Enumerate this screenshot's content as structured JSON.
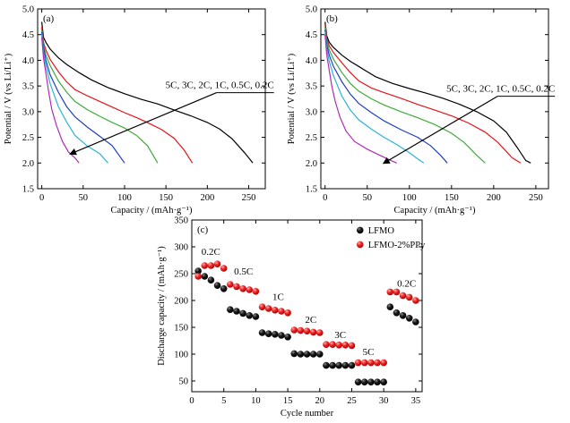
{
  "chart_data": [
    {
      "type": "line",
      "panel_label": "(a)",
      "xlabel": "Capacity / (mAh·g⁻¹)",
      "ylabel": "Potential / V (vs Li/Li⁺)",
      "xlim": [
        -5,
        270
      ],
      "ylim": [
        1.5,
        5.0
      ],
      "xticks": [
        0,
        50,
        100,
        150,
        200,
        250
      ],
      "yticks": [
        1.5,
        2.0,
        2.5,
        3.0,
        3.5,
        4.0,
        4.5,
        5.0
      ],
      "grid": false,
      "annotation": "5C, 3C, 2C, 1C, 0.5C, 0.2C",
      "arrow": {
        "from": [
          235,
          3.37
        ],
        "to": [
          35,
          2.18
        ]
      },
      "series": [
        {
          "color": "#000000",
          "points": [
            [
              0,
              4.75
            ],
            [
              2,
              4.45
            ],
            [
              5,
              4.35
            ],
            [
              10,
              4.22
            ],
            [
              20,
              4.05
            ],
            [
              30,
              3.92
            ],
            [
              45,
              3.76
            ],
            [
              60,
              3.62
            ],
            [
              80,
              3.47
            ],
            [
              100,
              3.35
            ],
            [
              120,
              3.24
            ],
            [
              140,
              3.15
            ],
            [
              160,
              3.03
            ],
            [
              180,
              2.92
            ],
            [
              200,
              2.79
            ],
            [
              215,
              2.66
            ],
            [
              230,
              2.47
            ],
            [
              245,
              2.2
            ],
            [
              255,
              2.0
            ]
          ]
        },
        {
          "color": "#e8141b",
          "points": [
            [
              0,
              4.65
            ],
            [
              2,
              4.35
            ],
            [
              5,
              4.2
            ],
            [
              10,
              4.02
            ],
            [
              20,
              3.78
            ],
            [
              30,
              3.58
            ],
            [
              40,
              3.43
            ],
            [
              55,
              3.31
            ],
            [
              70,
              3.2
            ],
            [
              85,
              3.09
            ],
            [
              100,
              2.98
            ],
            [
              115,
              2.88
            ],
            [
              130,
              2.77
            ],
            [
              145,
              2.65
            ],
            [
              160,
              2.48
            ],
            [
              172,
              2.25
            ],
            [
              182,
              2.0
            ]
          ]
        },
        {
          "color": "#3fab3a",
          "points": [
            [
              0,
              4.6
            ],
            [
              2,
              4.3
            ],
            [
              5,
              4.1
            ],
            [
              10,
              3.9
            ],
            [
              20,
              3.6
            ],
            [
              30,
              3.38
            ],
            [
              40,
              3.2
            ],
            [
              55,
              3.04
            ],
            [
              70,
              2.91
            ],
            [
              85,
              2.79
            ],
            [
              100,
              2.68
            ],
            [
              115,
              2.53
            ],
            [
              128,
              2.33
            ],
            [
              140,
              2.0
            ]
          ]
        },
        {
          "color": "#1f3ec4",
          "points": [
            [
              0,
              4.55
            ],
            [
              2,
              4.25
            ],
            [
              5,
              4.0
            ],
            [
              10,
              3.72
            ],
            [
              20,
              3.38
            ],
            [
              30,
              3.1
            ],
            [
              40,
              2.9
            ],
            [
              55,
              2.7
            ],
            [
              70,
              2.52
            ],
            [
              85,
              2.34
            ],
            [
              100,
              2.0
            ]
          ]
        },
        {
          "color": "#29b6d6",
          "points": [
            [
              0,
              4.5
            ],
            [
              2,
              4.15
            ],
            [
              5,
              3.9
            ],
            [
              10,
              3.55
            ],
            [
              20,
              3.1
            ],
            [
              30,
              2.8
            ],
            [
              40,
              2.54
            ],
            [
              55,
              2.33
            ],
            [
              70,
              2.18
            ],
            [
              80,
              2.0
            ]
          ]
        },
        {
          "color": "#b12bb8",
          "points": [
            [
              0,
              4.45
            ],
            [
              2,
              4.05
            ],
            [
              5,
              3.75
            ],
            [
              8,
              3.42
            ],
            [
              12,
              3.05
            ],
            [
              18,
              2.72
            ],
            [
              25,
              2.42
            ],
            [
              32,
              2.22
            ],
            [
              40,
              2.1
            ],
            [
              45,
              2.0
            ]
          ]
        }
      ]
    },
    {
      "type": "line",
      "panel_label": "(b)",
      "xlabel": "Capacity / (mAh·g⁻¹)",
      "ylabel": "Potential / V (vs Li/Li⁺)",
      "xlim": [
        -5,
        265
      ],
      "ylim": [
        1.5,
        5.0
      ],
      "xticks": [
        0,
        50,
        100,
        150,
        200,
        250
      ],
      "yticks": [
        1.5,
        2.0,
        2.5,
        3.0,
        3.5,
        4.0,
        4.5,
        5.0
      ],
      "grid": false,
      "annotation": "5C, 3C, 2C, 1C, 0.5C, 0.2C",
      "arrow": {
        "from": [
          228,
          3.3
        ],
        "to": [
          70,
          2.0
        ]
      },
      "series": [
        {
          "color": "#000000",
          "points": [
            [
              0,
              4.75
            ],
            [
              2,
              4.48
            ],
            [
              5,
              4.35
            ],
            [
              10,
              4.25
            ],
            [
              20,
              4.1
            ],
            [
              30,
              3.98
            ],
            [
              40,
              3.88
            ],
            [
              50,
              3.78
            ],
            [
              60,
              3.68
            ],
            [
              80,
              3.55
            ],
            [
              100,
              3.45
            ],
            [
              120,
              3.36
            ],
            [
              140,
              3.26
            ],
            [
              160,
              3.14
            ],
            [
              180,
              3.0
            ],
            [
              200,
              2.82
            ],
            [
              215,
              2.6
            ],
            [
              228,
              2.3
            ],
            [
              238,
              2.05
            ],
            [
              244,
              2.0
            ]
          ]
        },
        {
          "color": "#e8141b",
          "points": [
            [
              0,
              4.7
            ],
            [
              2,
              4.42
            ],
            [
              5,
              4.28
            ],
            [
              10,
              4.15
            ],
            [
              20,
              3.95
            ],
            [
              30,
              3.76
            ],
            [
              40,
              3.6
            ],
            [
              55,
              3.46
            ],
            [
              70,
              3.37
            ],
            [
              90,
              3.26
            ],
            [
              110,
              3.14
            ],
            [
              130,
              3.03
            ],
            [
              150,
              2.92
            ],
            [
              170,
              2.78
            ],
            [
              190,
              2.6
            ],
            [
              205,
              2.4
            ],
            [
              222,
              2.1
            ],
            [
              232,
              2.0
            ]
          ]
        },
        {
          "color": "#3fab3a",
          "points": [
            [
              0,
              4.65
            ],
            [
              2,
              4.38
            ],
            [
              5,
              4.2
            ],
            [
              10,
              4.02
            ],
            [
              20,
              3.76
            ],
            [
              30,
              3.55
            ],
            [
              40,
              3.4
            ],
            [
              55,
              3.25
            ],
            [
              70,
              3.13
            ],
            [
              90,
              3.0
            ],
            [
              110,
              2.88
            ],
            [
              130,
              2.75
            ],
            [
              150,
              2.58
            ],
            [
              165,
              2.4
            ],
            [
              180,
              2.15
            ],
            [
              190,
              2.0
            ]
          ]
        },
        {
          "color": "#1f3ec4",
          "points": [
            [
              0,
              4.6
            ],
            [
              2,
              4.3
            ],
            [
              5,
              4.1
            ],
            [
              10,
              3.88
            ],
            [
              20,
              3.58
            ],
            [
              30,
              3.34
            ],
            [
              40,
              3.16
            ],
            [
              55,
              2.98
            ],
            [
              70,
              2.82
            ],
            [
              90,
              2.65
            ],
            [
              110,
              2.5
            ],
            [
              125,
              2.34
            ],
            [
              137,
              2.15
            ],
            [
              145,
              2.0
            ]
          ]
        },
        {
          "color": "#29b6d6",
          "points": [
            [
              0,
              4.55
            ],
            [
              2,
              4.22
            ],
            [
              5,
              3.98
            ],
            [
              10,
              3.7
            ],
            [
              20,
              3.3
            ],
            [
              30,
              3.03
            ],
            [
              40,
              2.84
            ],
            [
              55,
              2.66
            ],
            [
              70,
              2.5
            ],
            [
              85,
              2.36
            ],
            [
              100,
              2.2
            ],
            [
              110,
              2.08
            ],
            [
              117,
              2.0
            ]
          ]
        },
        {
          "color": "#b12bb8",
          "points": [
            [
              0,
              4.5
            ],
            [
              2,
              4.1
            ],
            [
              5,
              3.8
            ],
            [
              8,
              3.5
            ],
            [
              12,
              3.2
            ],
            [
              18,
              2.88
            ],
            [
              25,
              2.62
            ],
            [
              35,
              2.42
            ],
            [
              50,
              2.27
            ],
            [
              65,
              2.15
            ],
            [
              78,
              2.05
            ],
            [
              85,
              2.0
            ]
          ]
        }
      ]
    },
    {
      "type": "scatter",
      "panel_label": "(c)",
      "xlabel": "Cycle number",
      "ylabel": "Discharge capacity / (mAh·g⁻¹)",
      "xlim": [
        0,
        36
      ],
      "ylim": [
        30,
        350
      ],
      "xticks": [
        0,
        5,
        10,
        15,
        20,
        25,
        30,
        35
      ],
      "yticks": [
        50,
        100,
        150,
        200,
        250,
        300,
        350
      ],
      "grid": false,
      "legend_position": "top-right",
      "rate_labels": [
        {
          "text": "0.2C",
          "x": 1.5,
          "y": 285
        },
        {
          "text": "0.5C",
          "x": 6.6,
          "y": 248
        },
        {
          "text": "1C",
          "x": 12.6,
          "y": 201
        },
        {
          "text": "2C",
          "x": 17.7,
          "y": 158
        },
        {
          "text": "3C",
          "x": 22.3,
          "y": 130
        },
        {
          "text": "5C",
          "x": 26.7,
          "y": 98
        },
        {
          "text": "0.2C",
          "x": 32.1,
          "y": 226
        }
      ],
      "series": [
        {
          "name": "LFMO",
          "color": "#000000",
          "x": [
            1,
            2,
            3,
            4,
            5,
            6,
            7,
            8,
            9,
            10,
            11,
            12,
            13,
            14,
            15,
            16,
            17,
            18,
            19,
            20,
            21,
            22,
            23,
            24,
            25,
            26,
            27,
            28,
            29,
            30,
            31,
            32,
            33,
            34,
            35
          ],
          "y": [
            255,
            245,
            238,
            228,
            222,
            183,
            180,
            176,
            172,
            170,
            140,
            138,
            137,
            135,
            132,
            101,
            100,
            100,
            100,
            100,
            79,
            79,
            79,
            79,
            79,
            48,
            48,
            48,
            48,
            48,
            188,
            177,
            172,
            167,
            160
          ]
        },
        {
          "name": "LFMO-2%PPy",
          "color": "#e8141b",
          "x": [
            1,
            2,
            3,
            4,
            5,
            6,
            7,
            8,
            9,
            10,
            11,
            12,
            13,
            14,
            15,
            16,
            17,
            18,
            19,
            20,
            21,
            22,
            23,
            24,
            25,
            26,
            27,
            28,
            29,
            30,
            31,
            32,
            33,
            34,
            35
          ],
          "y": [
            245,
            265,
            265,
            268,
            260,
            230,
            226,
            222,
            220,
            217,
            188,
            185,
            182,
            180,
            177,
            145,
            144,
            143,
            141,
            140,
            118,
            118,
            117,
            117,
            116,
            84,
            84,
            84,
            84,
            84,
            216,
            216,
            209,
            206,
            200
          ]
        }
      ]
    }
  ]
}
